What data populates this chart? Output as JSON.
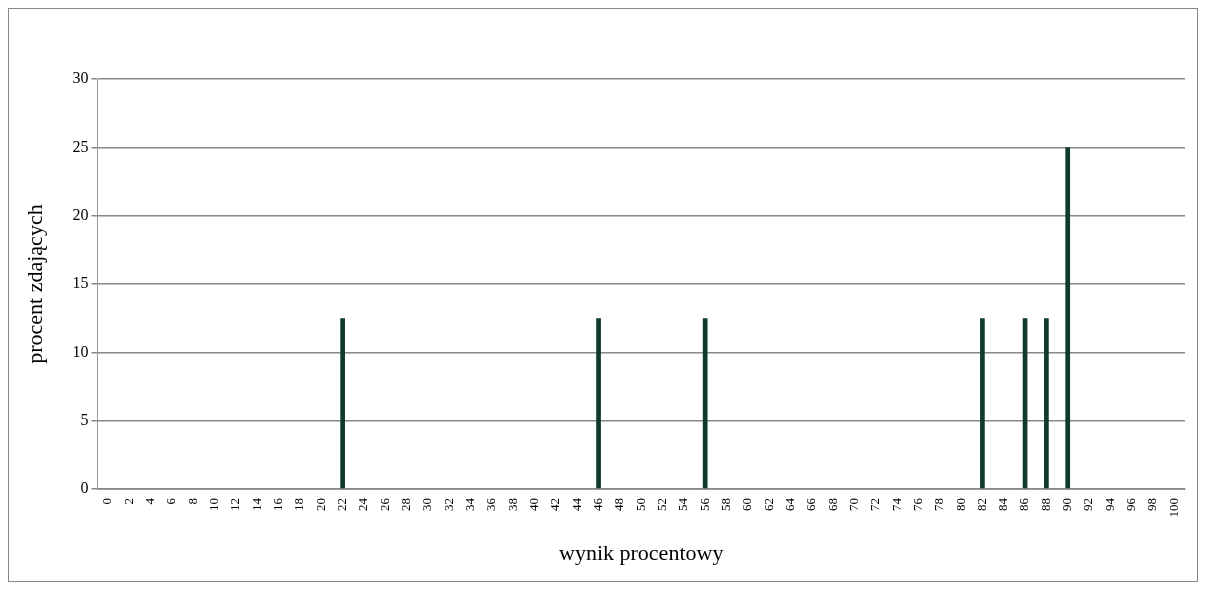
{
  "chart_data": {
    "type": "bar",
    "xlabel": "wynik procentowy",
    "ylabel": "procent zdających",
    "categories": [
      "0",
      "2",
      "4",
      "6",
      "8",
      "10",
      "12",
      "14",
      "16",
      "18",
      "20",
      "22",
      "24",
      "26",
      "28",
      "30",
      "32",
      "34",
      "36",
      "38",
      "40",
      "42",
      "44",
      "46",
      "48",
      "50",
      "52",
      "54",
      "56",
      "58",
      "60",
      "62",
      "64",
      "66",
      "68",
      "70",
      "72",
      "74",
      "76",
      "78",
      "80",
      "82",
      "84",
      "86",
      "88",
      "90",
      "92",
      "94",
      "96",
      "98",
      "100"
    ],
    "values": [
      0,
      0,
      0,
      0,
      0,
      0,
      0,
      0,
      0,
      0,
      0,
      12.5,
      0,
      0,
      0,
      0,
      0,
      0,
      0,
      0,
      0,
      0,
      0,
      12.5,
      0,
      0,
      0,
      0,
      12.5,
      0,
      0,
      0,
      0,
      0,
      0,
      0,
      0,
      0,
      0,
      0,
      0,
      12.5,
      0,
      12.5,
      12.5,
      25,
      0,
      0,
      0,
      0,
      0
    ],
    "color": "#0f3b2a",
    "ylim": [
      0,
      30
    ],
    "yticks": [
      0,
      5,
      10,
      15,
      20,
      25,
      30
    ],
    "grid": "y"
  }
}
